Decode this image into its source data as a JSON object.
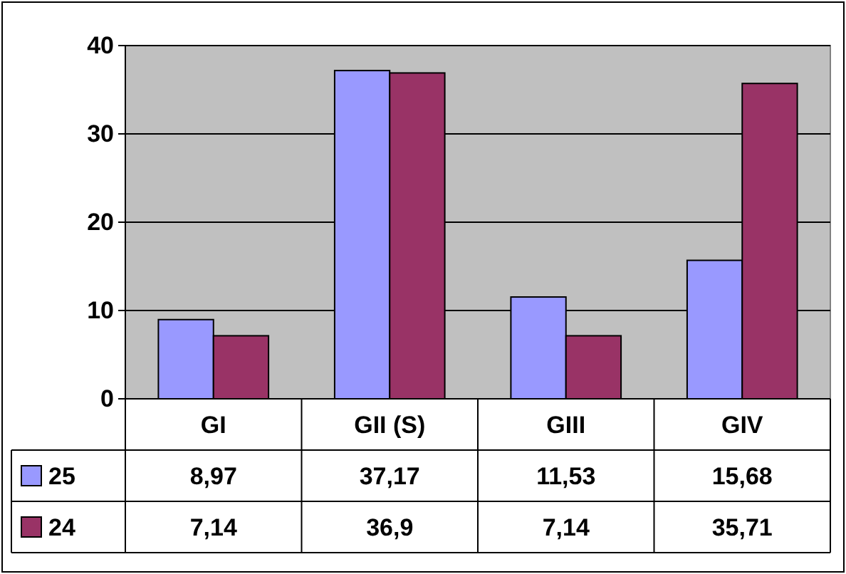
{
  "chart_data": {
    "type": "bar",
    "categories": [
      "GI",
      "GII (S)",
      "GIII",
      "GIV"
    ],
    "series": [
      {
        "name": "25",
        "color": "#9999ff",
        "values": [
          8.97,
          37.17,
          11.53,
          15.68
        ],
        "value_labels": [
          "8,97",
          "37,17",
          "11,53",
          "15,68"
        ]
      },
      {
        "name": "24",
        "color": "#993366",
        "values": [
          7.14,
          36.9,
          7.14,
          35.71
        ],
        "value_labels": [
          "7,14",
          "36,9",
          "7,14",
          "35,71"
        ]
      }
    ],
    "ylim": [
      0,
      40
    ],
    "yticks": [
      0,
      10,
      20,
      30,
      40
    ],
    "grid": "y",
    "legend": "bottom"
  }
}
